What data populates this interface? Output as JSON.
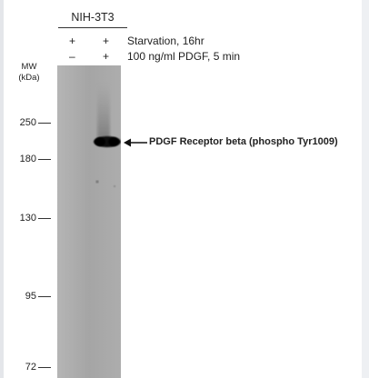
{
  "cell_line": "NIH-3T3",
  "conditions": [
    {
      "label": "Starvation, 16hr",
      "lane1": "+",
      "lane2": "+"
    },
    {
      "label": "100 ng/ml PDGF, 5 min",
      "lane1": "–",
      "lane2": "+"
    }
  ],
  "mw_header": {
    "line1": "MW",
    "line2": "(kDa)"
  },
  "mw_markers": [
    {
      "label": "250"
    },
    {
      "label": "180"
    },
    {
      "label": "130"
    },
    {
      "label": "95"
    },
    {
      "label": "72"
    }
  ],
  "band_label": "PDGF Receptor beta (phospho Tyr1009)",
  "colors": {
    "gel": "#a8a8a8",
    "band": "#111111"
  }
}
